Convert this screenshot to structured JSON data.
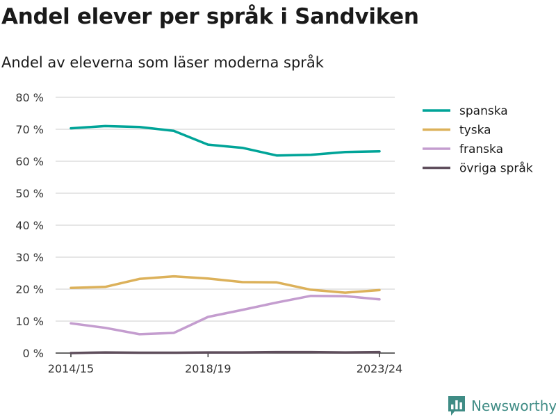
{
  "brand": {
    "name": "Newsworthy",
    "color": "#3f8c85"
  },
  "chart_data": {
    "type": "line",
    "title": "Andel elever per språk i Sandviken",
    "subtitle": "Andel av eleverna som läser moderna språk",
    "x": [
      "2014/15",
      "2015/16",
      "2016/17",
      "2017/18",
      "2018/19",
      "2019/20",
      "2020/21",
      "2021/22",
      "2022/23",
      "2023/24"
    ],
    "x_tick_labels": [
      "2014/15",
      "2018/19",
      "2023/24"
    ],
    "ylim": [
      0,
      80
    ],
    "y_ticks": [
      0,
      10,
      20,
      30,
      40,
      50,
      60,
      70,
      80
    ],
    "y_tick_labels": [
      "0 %",
      "10 %",
      "20 %",
      "30 %",
      "40 %",
      "50 %",
      "60 %",
      "70 %",
      "80 %"
    ],
    "grid": true,
    "legend_position": "right",
    "series": [
      {
        "name": "spanska",
        "color": "#00a498",
        "values": [
          70.3,
          71.0,
          70.7,
          69.5,
          65.2,
          64.2,
          61.8,
          62.0,
          62.9,
          63.1
        ]
      },
      {
        "name": "tyska",
        "color": "#dcb15a",
        "values": [
          20.4,
          20.7,
          23.2,
          24.0,
          23.3,
          22.2,
          22.1,
          19.8,
          18.9,
          19.7
        ]
      },
      {
        "name": "franska",
        "color": "#c49dcf",
        "values": [
          9.3,
          7.9,
          5.9,
          6.3,
          11.3,
          13.5,
          15.8,
          17.9,
          17.8,
          16.8
        ]
      },
      {
        "name": "övriga språk",
        "color": "#5f4e5c",
        "values": [
          0.0,
          0.2,
          0.1,
          0.1,
          0.2,
          0.2,
          0.3,
          0.3,
          0.2,
          0.3
        ]
      }
    ]
  }
}
